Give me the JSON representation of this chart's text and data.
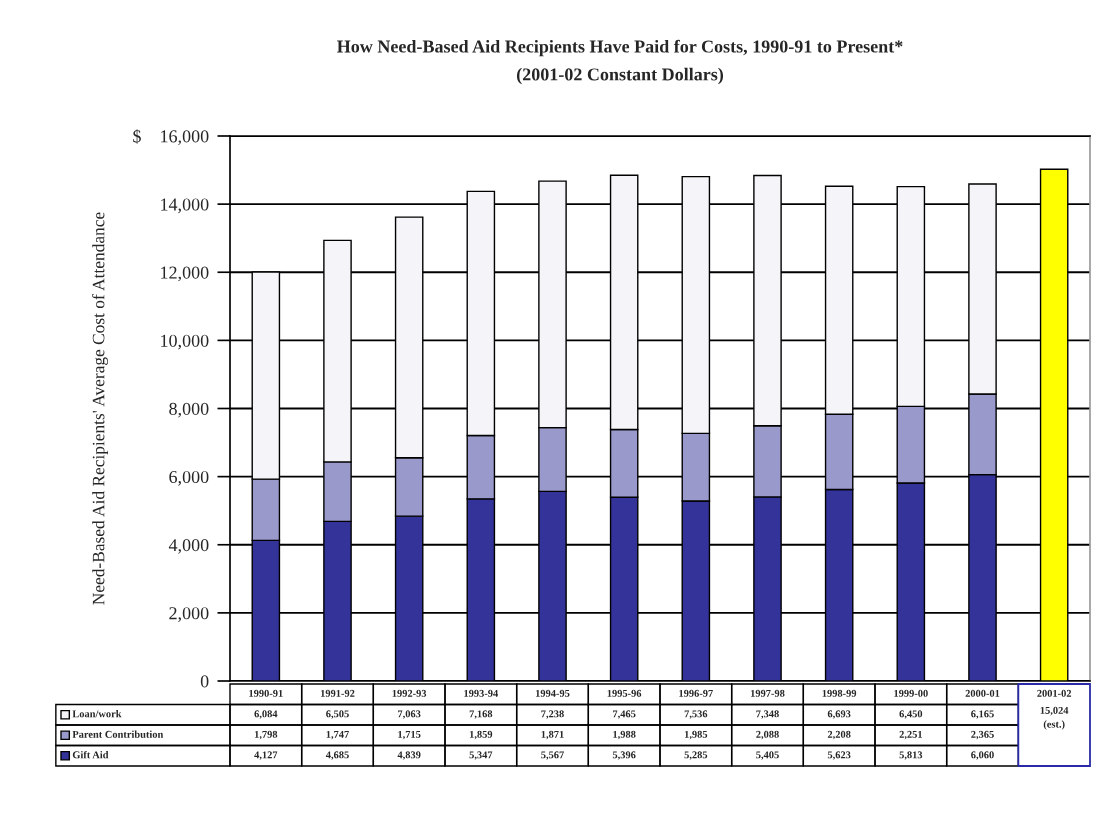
{
  "chart_data": {
    "type": "bar",
    "stacked": true,
    "title": "How Need-Based Aid Recipients Have Paid for Costs, 1990-91 to Present*",
    "subtitle": "(2001-02 Constant Dollars)",
    "ylabel": "Need-Based Aid Recipients' Average Cost of Attendance",
    "categories": [
      "1990-91",
      "1991-92",
      "1992-93",
      "1993-94",
      "1994-95",
      "1995-96",
      "1996-97",
      "1997-98",
      "1998-99",
      "1999-00",
      "2000-01",
      "2001-02"
    ],
    "series": [
      {
        "name": "Gift Aid",
        "color": "#333399",
        "values": [
          4127,
          4685,
          4839,
          5347,
          5567,
          5396,
          5285,
          5405,
          5623,
          5813,
          6060,
          null
        ],
        "value_labels": [
          "4,127",
          "4,685",
          "4,839",
          "5,347",
          "5,567",
          "5,396",
          "5,285",
          "5,405",
          "5,623",
          "5,813",
          "6,060",
          null
        ]
      },
      {
        "name": "Parent Contribution",
        "color": "#9999cc",
        "values": [
          1798,
          1747,
          1715,
          1859,
          1871,
          1988,
          1985,
          2088,
          2208,
          2251,
          2365,
          null
        ],
        "value_labels": [
          "1,798",
          "1,747",
          "1,715",
          "1,859",
          "1,871",
          "1,988",
          "1,985",
          "2,088",
          "2,208",
          "2,251",
          "2,365",
          null
        ]
      },
      {
        "name": "Loan/work",
        "color": "#f4f4f9",
        "values": [
          6084,
          6505,
          7063,
          7168,
          7238,
          7465,
          7536,
          7348,
          6693,
          6450,
          6165,
          null
        ],
        "value_labels": [
          "6,084",
          "6,505",
          "7,063",
          "7,168",
          "7,238",
          "7,465",
          "7,536",
          "7,348",
          "6,693",
          "6,450",
          "6,165",
          null
        ]
      },
      {
        "color": "#ffff00",
        "values": [
          null,
          null,
          null,
          null,
          null,
          null,
          null,
          null,
          null,
          null,
          null,
          15024
        ],
        "value_labels": [
          null,
          null,
          null,
          null,
          null,
          null,
          null,
          null,
          null,
          null,
          null,
          "15,024\n(est.)"
        ]
      }
    ],
    "ylim": [
      0,
      16000
    ],
    "yticks": [
      0,
      {
        "value": 2000,
        "label": "2,000"
      },
      {
        "value": 4000,
        "label": "4,000"
      },
      {
        "value": 6000,
        "label": "6,000"
      },
      {
        "value": 8000,
        "label": "8,000"
      },
      {
        "value": 10000,
        "label": "10,000"
      },
      {
        "value": 12000,
        "label": "12,000"
      },
      {
        "value": 14000,
        "label": "14,000"
      },
      {
        "value": 16000,
        "label": "$    16,000"
      }
    ],
    "grid": "y",
    "legend": "bottom"
  }
}
